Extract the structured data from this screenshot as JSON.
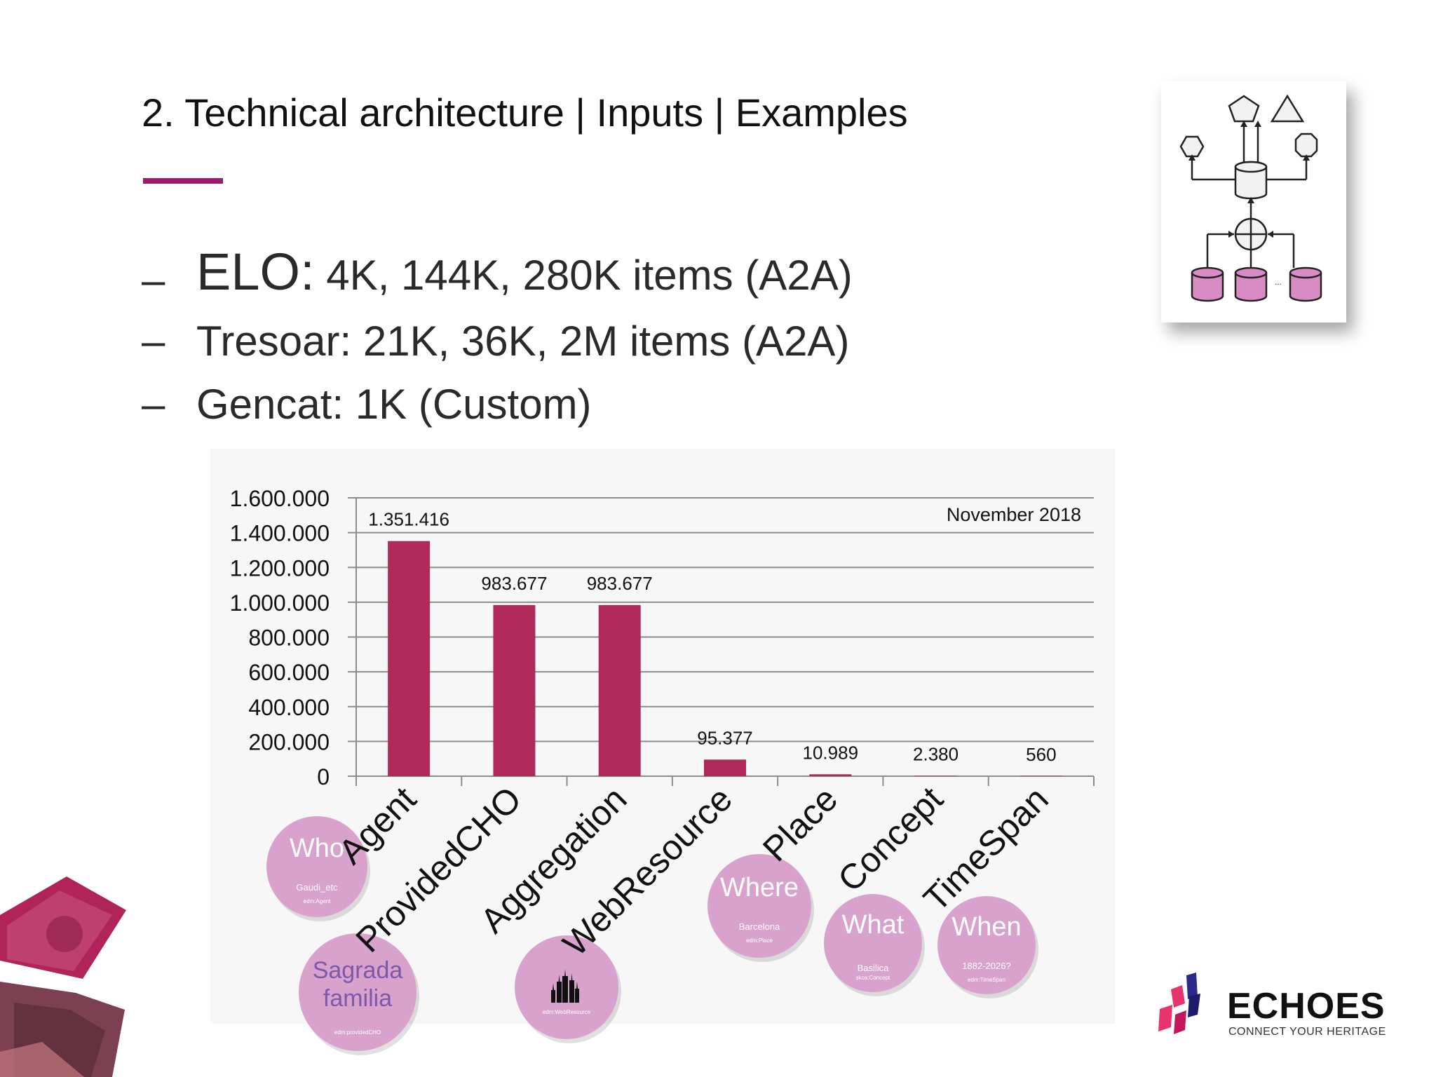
{
  "slide": {
    "title": "2. Technical architecture | Inputs | Examples",
    "accent_color": "#9b1b6e"
  },
  "bullets": [
    {
      "dash": "–",
      "label": "ELO:",
      "text": " 4K, 144K, 280K items (A2A)"
    },
    {
      "dash": "–",
      "text": "Tresoar: 21K, 36K, 2M items (A2A)"
    },
    {
      "dash": "–",
      "text": "Gencat: 1K (Custom)"
    }
  ],
  "diagram": {
    "icon": "architecture-diagram-icon",
    "ellipsis": "..."
  },
  "chart_data": {
    "type": "bar",
    "categories": [
      "Agent",
      "ProvidedCHO",
      "Aggregation",
      "WebResource",
      "Place",
      "Concept",
      "TimeSpan"
    ],
    "values": [
      1351416,
      983677,
      983677,
      95377,
      10989,
      2380,
      560
    ],
    "data_labels": [
      "1.351.416",
      "983.677",
      "983.677",
      "95.377",
      "10.989",
      "2.380",
      "560"
    ],
    "ylim": [
      0,
      1600000
    ],
    "yticks": [
      0,
      200000,
      400000,
      600000,
      800000,
      1000000,
      1200000,
      1400000,
      1600000
    ],
    "ytick_labels": [
      "0",
      "200.000",
      "400.000",
      "600.000",
      "800.000",
      "1.000.000",
      "1.200.000",
      "1.400.000",
      "1.600.000"
    ],
    "annotation": "November 2018",
    "bar_color": "#b0295a",
    "grid": true
  },
  "bubbles": [
    {
      "title": "Who",
      "sub": "Gaudi_etc",
      "tag": "edm:Agent",
      "icon": ""
    },
    {
      "title": "Sagrada familia",
      "sub": "",
      "tag": "edm:providedCHO",
      "icon": ""
    },
    {
      "title": "",
      "sub": "",
      "tag": "edm:WebResource",
      "icon": "cathedral-icon"
    },
    {
      "title": "Where",
      "sub": "Barcelona",
      "tag": "edm:Place",
      "icon": ""
    },
    {
      "title": "What",
      "sub": "Basilica",
      "tag": "skos:Concept",
      "icon": ""
    },
    {
      "title": "When",
      "sub": "1882-2026?",
      "tag": "edm:TimeSpan",
      "icon": ""
    }
  ],
  "logo": {
    "name": "ECHOES",
    "tagline": "CONNECT YOUR HERITAGE",
    "colors": [
      "#e8336d",
      "#2b2a8a",
      "#c2185b"
    ]
  }
}
